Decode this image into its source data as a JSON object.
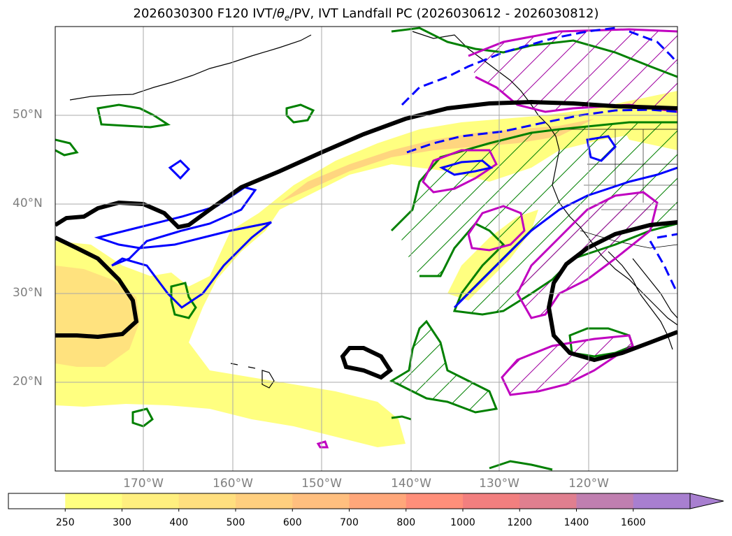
{
  "title": "2026030300 F120 IVT/θe/PV, IVT Landfall PC (2026030612 - 2026030812)",
  "title_parts": {
    "pre": "2026030300 F120 IVT/",
    "theta": "θ",
    "sub": "e",
    "post": "/PV, IVT Landfall PC (2026030612 - 2026030812)"
  },
  "map": {
    "lat_labels": [
      "50°N",
      "40°N",
      "30°N",
      "20°N"
    ],
    "lon_labels": [
      "170°W",
      "160°W",
      "150°W",
      "140°W",
      "130°W",
      "120°W"
    ]
  },
  "colorbar": {
    "levels": [
      "250",
      "300",
      "400",
      "500",
      "600",
      "700",
      "800",
      "1000",
      "1200",
      "1400",
      "1600"
    ],
    "colors": [
      "#ffff80",
      "#ffef7f",
      "#ffdf7f",
      "#ffcf7f",
      "#ffbf7f",
      "#ffa77a",
      "#ff8f7a",
      "#f27f7f",
      "#e07f8f",
      "#c07fb0",
      "#a87fd0"
    ],
    "extend": "max"
  },
  "legend_colors": {
    "ivt_fill": "#fff583",
    "pv_contour": "#000000",
    "theta_contour": "#0000ff",
    "pc_positive": "#008000",
    "pc_negative": "#c000c0"
  }
}
